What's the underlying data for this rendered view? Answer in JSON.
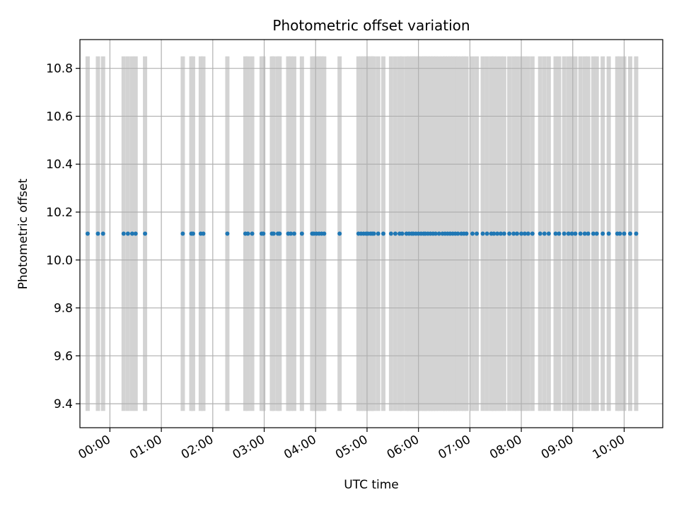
{
  "chart_data": {
    "type": "scatter",
    "title": "Photometric offset variation",
    "xlabel": "UTC time",
    "ylabel": "Photometric offset",
    "xlim": [
      "-00:35",
      "10:45"
    ],
    "ylim": [
      9.3,
      10.92
    ],
    "yticks": [
      "9.4",
      "9.6",
      "9.8",
      "10.0",
      "10.2",
      "10.4",
      "10.6",
      "10.8"
    ],
    "xticks": [
      "00:00",
      "01:00",
      "02:00",
      "03:00",
      "04:00",
      "05:00",
      "06:00",
      "07:00",
      "08:00",
      "09:00",
      "10:00"
    ],
    "grid": true,
    "colors": {
      "point": "#1f77b4",
      "band": "#d3d3d3",
      "grid": "#b0b0b0"
    },
    "bar_range": [
      9.37,
      10.85
    ],
    "series": [
      {
        "offset_value": 10.11,
        "times": [
          "23:34",
          "23:46",
          "23:52",
          "00:16",
          "00:21",
          "00:26",
          "00:30",
          "00:41",
          "01:25",
          "01:35",
          "01:37",
          "01:46",
          "01:49",
          "02:17",
          "02:38",
          "02:41",
          "02:46",
          "02:57",
          "02:59",
          "03:09",
          "03:11",
          "03:16",
          "03:18",
          "03:28",
          "03:31",
          "03:35",
          "03:44",
          "03:56",
          "03:58",
          "04:01",
          "04:04",
          "04:07",
          "04:10",
          "04:28",
          "04:50",
          "04:53",
          "04:56",
          "04:59",
          "05:01",
          "05:04",
          "05:06",
          "05:08",
          "05:13",
          "05:19",
          "05:28",
          "05:33",
          "05:38",
          "05:41",
          "05:46",
          "05:49",
          "05:52",
          "05:54",
          "05:57",
          "06:00",
          "06:03",
          "06:06",
          "06:08",
          "06:11",
          "06:14",
          "06:17",
          "06:20",
          "06:24",
          "06:28",
          "06:31",
          "06:34",
          "06:37",
          "06:40",
          "06:43",
          "06:46",
          "06:50",
          "06:53",
          "06:56",
          "07:03",
          "07:08",
          "07:15",
          "07:20",
          "07:25",
          "07:28",
          "07:32",
          "07:36",
          "07:40",
          "07:46",
          "07:51",
          "07:55",
          "08:00",
          "08:04",
          "08:08",
          "08:13",
          "08:22",
          "08:27",
          "08:32",
          "08:40",
          "08:44",
          "08:50",
          "08:55",
          "08:59",
          "09:03",
          "09:09",
          "09:14",
          "09:18",
          "09:24",
          "09:28",
          "09:35",
          "09:42",
          "09:52",
          "09:55",
          "10:00",
          "10:07",
          "10:14"
        ]
      }
    ]
  }
}
